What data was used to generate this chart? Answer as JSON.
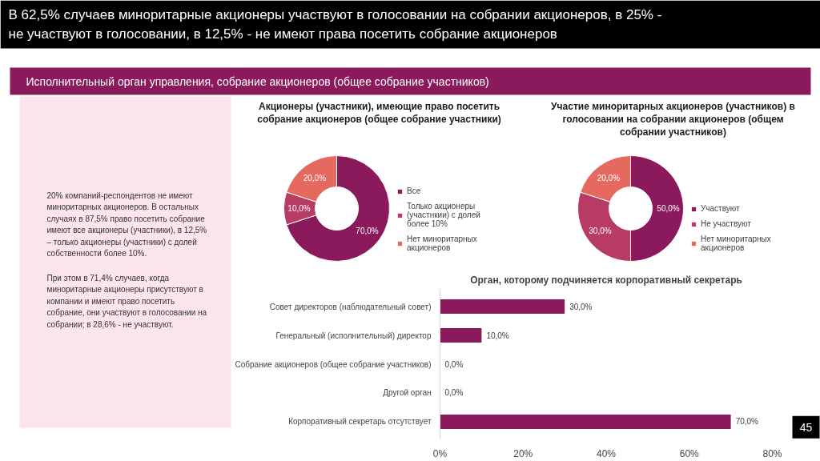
{
  "chart_data": [
    {
      "type": "other",
      "title": "В 62,5% случаев миноритарные акционеры участвуют в голосовании на собрании акционеров, в 25% - не участвуют в голосовании, в 12,5% - не имеют права посетить собрание акционеров",
      "subtitle": "Исполнительный орган управления, собрание акционеров (общее собрание участников)",
      "annotations": [
        "20% компаний-респондентов не имеют миноритарных акционеров. В остальных случаях в 87,5% право посетить собрание имеют все акционеры (участники), в 12,5% –  только акционеры (участники) с долей собственности более 10%.",
        "При этом в 71,4% случаев, когда миноритарные акционеры присутствуют в компании и имеют право посетить собрание, они участвуют в голосовании на собрании; в 28,6% - не участвуют.",
        "45"
      ]
    },
    {
      "type": "donut",
      "title": "Акционеры (участники), имеющие право посетить собрание акционеров (общее собрание участники)",
      "categories": [
        "Все",
        "Только акционеры (участнкии) с долей более 10%",
        "Нет миноритарных акционеров"
      ],
      "values": [
        70,
        10,
        20
      ],
      "colors": [
        "#8b1a5c",
        "#b83b65",
        "#e5695f"
      ],
      "value_labels": [
        "70,0%",
        "10,0%",
        "20,0%"
      ],
      "legend": "right"
    },
    {
      "type": "donut",
      "title": "Участие миноритарных акционеров (участников) в голосовании на собрании акционеров (общем собрании участников)",
      "categories": [
        "Участвуют",
        "Не участвуют",
        "Нет миноритарных акционеров"
      ],
      "values": [
        50,
        30,
        20
      ],
      "colors": [
        "#8b1a5c",
        "#b83b65",
        "#e5695f"
      ],
      "value_labels": [
        "50,0%",
        "30,0%",
        "20,0%"
      ],
      "legend": "right"
    },
    {
      "type": "bar",
      "orientation": "horizontal",
      "title": "Орган, которому подчиняется корпоративный секретарь",
      "categories": [
        "Совет директоров (наблюдательный совет)",
        "Генеральный (исполнительный) директор",
        "Собрание акционеров (общее собрание участников)",
        "Другой орган",
        "Корпоративный секретарь отсутствует"
      ],
      "values": [
        30,
        10,
        0,
        0,
        70
      ],
      "color": "#8b1a5c",
      "value_labels": [
        "30,0%",
        "10,0%",
        "0,0%",
        "0,0%",
        "70,0%"
      ],
      "xlim": [
        0,
        80
      ],
      "xticks": [
        {
          "value": 0,
          "label": "0%"
        },
        {
          "value": 20,
          "label": "20%"
        },
        {
          "value": 40,
          "label": "40%"
        },
        {
          "value": 60,
          "label": "60%"
        },
        {
          "value": 80,
          "label": "80%"
        }
      ],
      "grid": false
    }
  ]
}
